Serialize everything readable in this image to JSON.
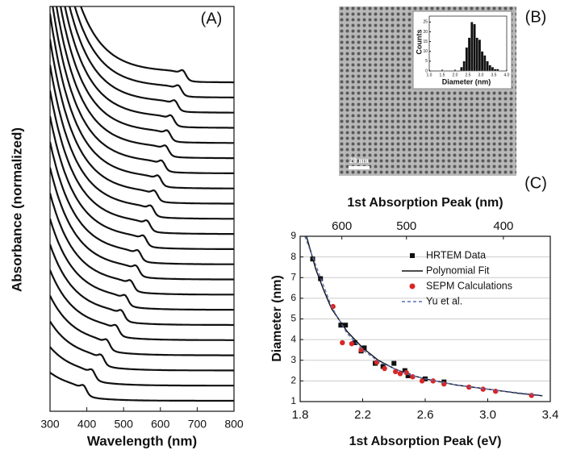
{
  "chart_data": [
    {
      "type": "spectra",
      "label": "(A)",
      "x_label": "Wavelength (nm)",
      "y_label": "Absorbance (normalized)",
      "xlim": [
        300,
        800
      ],
      "xticks": [
        300,
        400,
        500,
        600,
        700,
        800
      ],
      "peaks": [
        392,
        415,
        440,
        455,
        480,
        495,
        505,
        520,
        535,
        540,
        555,
        565,
        575,
        585,
        595,
        605,
        615,
        620,
        630,
        640,
        650,
        662
      ]
    },
    {
      "type": "histogram",
      "label": "(B)",
      "scale_bar": "20 nm",
      "x_label": "Diameter (nm)",
      "y_label": "Counts",
      "bins": [
        2.2,
        2.3,
        2.4,
        2.5,
        2.6,
        2.7,
        2.8,
        2.9,
        3.0,
        3.1,
        3.2,
        3.3,
        3.4,
        3.5,
        3.6,
        3.7
      ],
      "counts": [
        2,
        5,
        12,
        17,
        25,
        24,
        17,
        16,
        10,
        8,
        5,
        3,
        2,
        1,
        1
      ],
      "color": "#111111",
      "xlim": [
        1,
        4
      ],
      "xticks": [
        {
          "value": 1,
          "label": "1.0"
        },
        1.5,
        {
          "value": 2,
          "label": "2.0"
        },
        2.5,
        {
          "value": 3,
          "label": "3.0"
        },
        3.5,
        {
          "value": 4,
          "label": "4.0"
        }
      ],
      "ylim": [
        0,
        28
      ],
      "yticks": [
        0,
        5,
        10,
        15,
        20,
        25
      ]
    },
    {
      "type": "scatter",
      "label": "(C)",
      "x_label": "1st Absorption Peak (eV)",
      "x2_label": "1st Absorption Peak (nm)",
      "y_label": "Diameter (nm)",
      "xlim": [
        1.8,
        3.4
      ],
      "xticks": [
        1.8,
        2.2,
        2.6,
        {
          "value": 3,
          "label": "3.0"
        },
        3.4
      ],
      "ylim": [
        1,
        9
      ],
      "yticks": [
        1,
        2,
        3,
        4,
        5,
        6,
        7,
        8,
        9
      ],
      "x2ticks": [
        600,
        500,
        400
      ],
      "grid": true,
      "series": [
        {
          "name": "HRTEM Data",
          "color": "#111111",
          "marker": "square",
          "x": [
            1.88,
            1.93,
            2.06,
            2.09,
            2.15,
            2.19,
            2.21,
            2.28,
            2.33,
            2.4,
            2.47,
            2.49,
            2.6,
            2.72
          ],
          "values": [
            7.9,
            6.95,
            4.7,
            4.7,
            3.85,
            3.45,
            3.6,
            2.85,
            2.7,
            2.85,
            2.5,
            2.25,
            2.1,
            1.95
          ]
        },
        {
          "name": "Polynomial Fit",
          "color": "#111111",
          "marker": "line",
          "x": [
            1.84,
            1.9,
            1.95,
            2.0,
            2.1,
            2.2,
            2.3,
            2.4,
            2.5,
            2.6,
            2.8,
            3.0,
            3.2,
            3.35
          ],
          "values": [
            9,
            7.4,
            6.4,
            5.5,
            4.4,
            3.6,
            3.0,
            2.6,
            2.3,
            2.1,
            1.8,
            1.6,
            1.4,
            1.28
          ]
        },
        {
          "name": "SEPM Calculations",
          "color": "#d62728",
          "marker": "circle",
          "x": [
            2.01,
            2.07,
            2.13,
            2.19,
            2.29,
            2.34,
            2.41,
            2.44,
            2.48,
            2.52,
            2.58,
            2.65,
            2.72,
            2.88,
            2.97,
            3.05,
            3.28
          ],
          "values": [
            5.6,
            3.85,
            3.8,
            3.5,
            2.9,
            2.6,
            2.45,
            2.35,
            2.4,
            2.2,
            2.0,
            2.0,
            1.85,
            1.7,
            1.6,
            1.5,
            1.3
          ]
        },
        {
          "name": "Yu et al.",
          "color": "#5b6fb5",
          "marker": "dash",
          "x": [
            1.83,
            1.9,
            2.0,
            2.1,
            2.2,
            2.3,
            2.4,
            2.5,
            2.6,
            2.8,
            3.0,
            3.2,
            3.35
          ],
          "values": [
            9,
            7.6,
            5.6,
            4.3,
            3.5,
            2.95,
            2.6,
            2.3,
            2.1,
            1.8,
            1.6,
            1.42,
            1.3
          ]
        }
      ]
    }
  ]
}
